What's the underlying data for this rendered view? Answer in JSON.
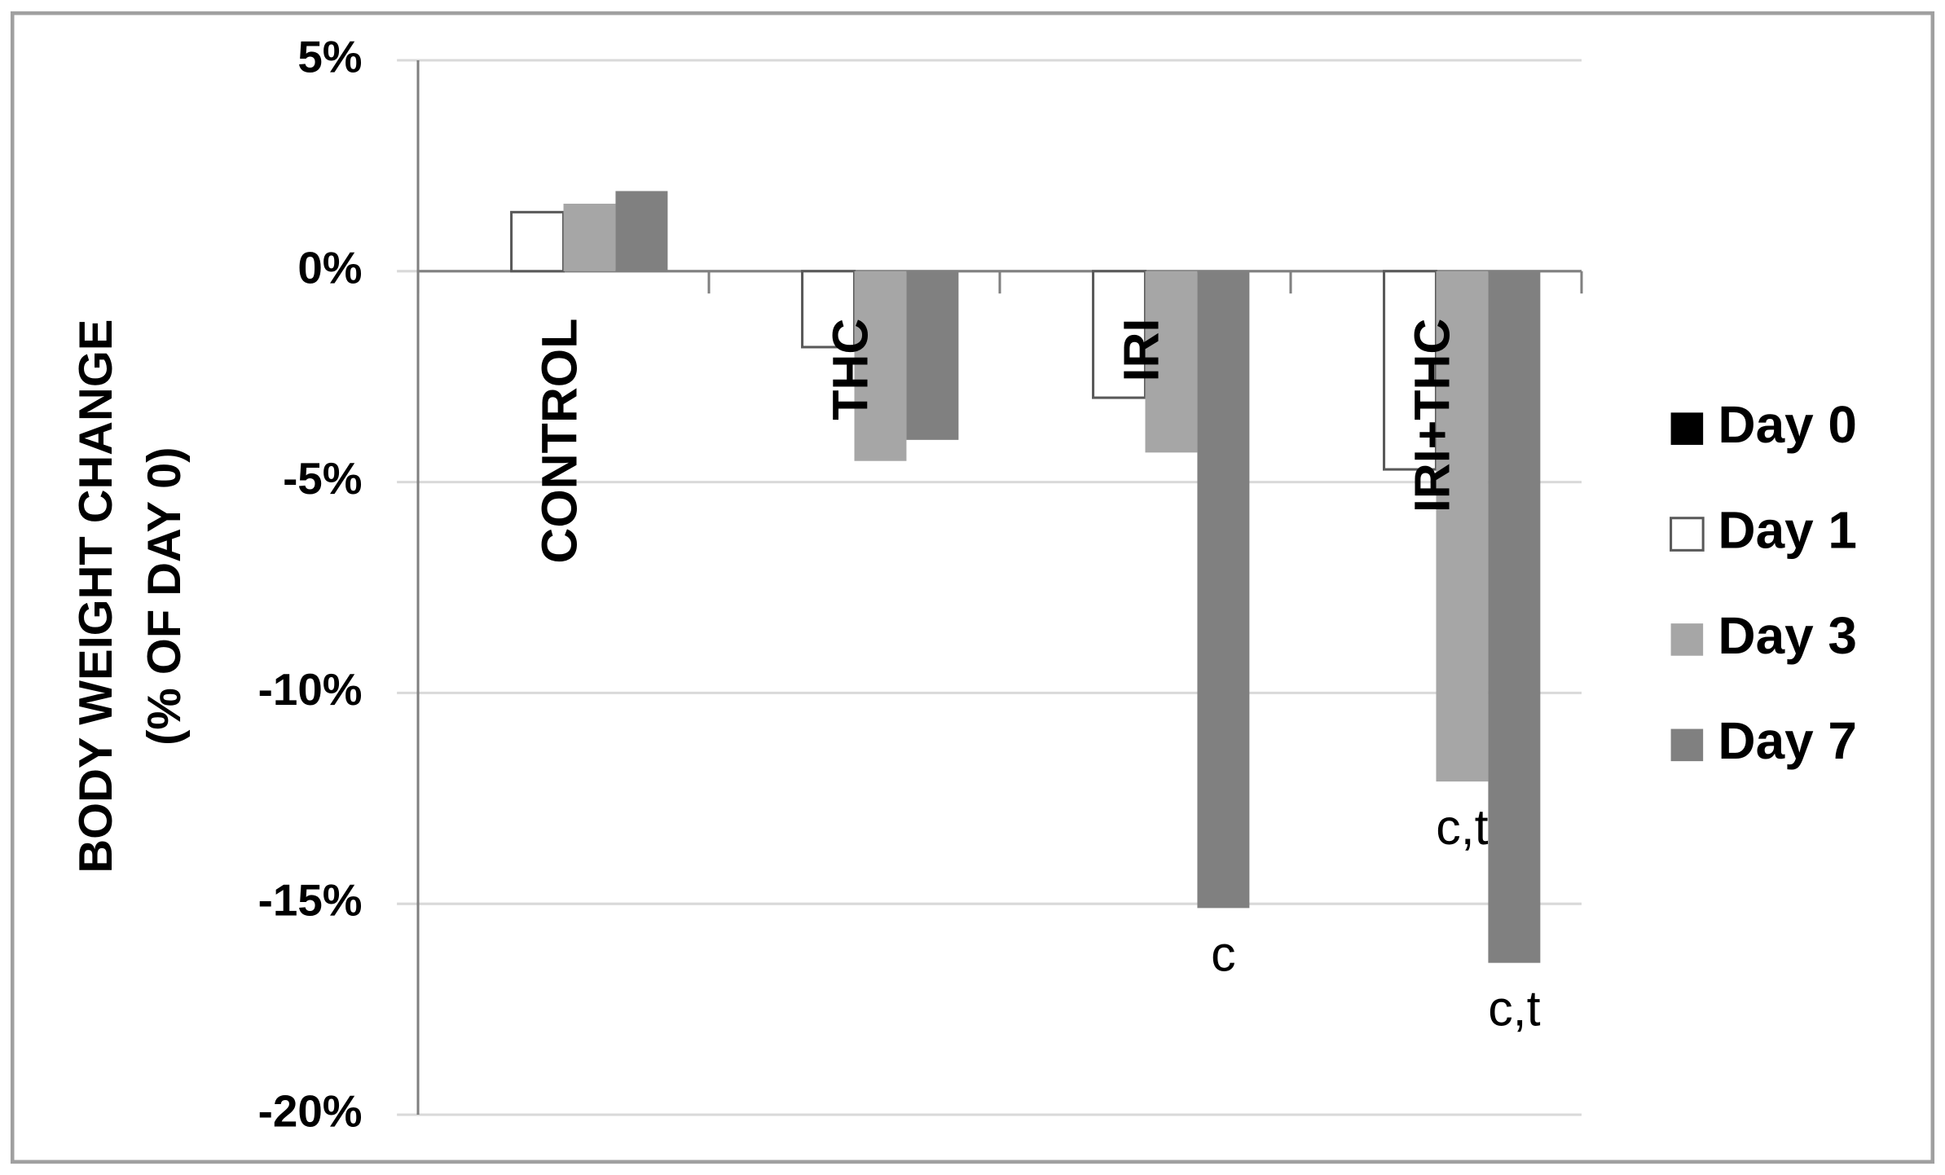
{
  "chart_data": {
    "type": "bar",
    "y_axis_title": [
      "BODY WEIGHT CHANGE",
      "(% OF DAY 0)"
    ],
    "categories": [
      "CONTROL",
      "THC",
      "IRI",
      "IRI+THC"
    ],
    "series": [
      {
        "name": "Day 0",
        "color": "#000000",
        "values": [
          0,
          0,
          0,
          0
        ]
      },
      {
        "name": "Day 1",
        "color": "#ffffff",
        "values": [
          1.4,
          -1.8,
          -3.0,
          -4.7
        ]
      },
      {
        "name": "Day 3",
        "color": "#a6a6a6",
        "values": [
          1.6,
          -4.5,
          -4.3,
          -12.1
        ],
        "labels": [
          null,
          null,
          null,
          "c,t"
        ]
      },
      {
        "name": "Day 7",
        "color": "#808080",
        "values": [
          1.9,
          -4.0,
          -15.1,
          -16.4
        ],
        "labels": [
          null,
          null,
          "c",
          "c,t"
        ]
      }
    ],
    "ylim": [
      -20,
      5
    ],
    "yticks": [
      {
        "value": 5,
        "label": "5%"
      },
      {
        "value": 0,
        "label": "0%"
      },
      {
        "value": -5,
        "label": "-5%"
      },
      {
        "value": -10,
        "label": "-10%"
      },
      {
        "value": -15,
        "label": "-15%"
      },
      {
        "value": -20,
        "label": "-20%"
      }
    ],
    "grid": true,
    "legend": "right"
  }
}
